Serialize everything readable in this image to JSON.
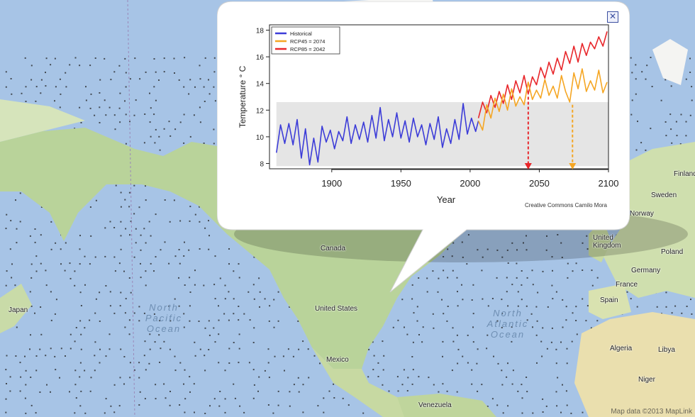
{
  "map": {
    "labels": {
      "japan": "Japan",
      "canada": "Canada",
      "united_states": "United States",
      "mexico": "Mexico",
      "venezuela": "Venezuela",
      "algeria": "Algeria",
      "libya": "Libya",
      "niger": "Niger",
      "spain": "Spain",
      "france": "France",
      "germany": "Germany",
      "poland": "Poland",
      "united_kingdom": "United Kingdom",
      "norway": "Norway",
      "finland": "Finland",
      "sweden": "Sweden"
    },
    "oceans": {
      "north_pacific": "North Pacific Ocean",
      "north_atlantic": "North Atlantic Ocean"
    },
    "copyright": "Map data ©2013 MapLink"
  },
  "popup": {
    "close_icon": "close-icon"
  },
  "chart_data": {
    "type": "line",
    "title": "",
    "xlabel": "Year",
    "ylabel": "Temperature ° C",
    "xlim": [
      1855,
      2100
    ],
    "ylim": [
      7.6,
      18.4
    ],
    "x_ticks": [
      1900,
      1950,
      2000,
      2050,
      2100
    ],
    "y_ticks": [
      8,
      10,
      12,
      14,
      16,
      18
    ],
    "band": {
      "y_min": 7.8,
      "y_max": 12.6,
      "x_min": 1860,
      "x_max": 2100
    },
    "credit": "Creative Commons Camilo Mora",
    "legend": {
      "placement": "top-left",
      "entries": [
        {
          "name": "Historical",
          "color": "#3c3cd8"
        },
        {
          "name": "RCP45 = 2074",
          "color": "#f5a623"
        },
        {
          "name": "RCP85 = 2042",
          "color": "#e8262a"
        }
      ]
    },
    "markers": [
      {
        "year": 2042,
        "color": "#e8262a",
        "from_y": 13.0
      },
      {
        "year": 2074,
        "color": "#f5a623",
        "from_y": 12.4
      }
    ],
    "series": [
      {
        "name": "Historical",
        "color": "#3c3cd8",
        "x": [
          1860,
          1863,
          1866,
          1869,
          1872,
          1875,
          1878,
          1881,
          1884,
          1887,
          1890,
          1893,
          1896,
          1899,
          1902,
          1905,
          1908,
          1911,
          1914,
          1917,
          1920,
          1923,
          1926,
          1929,
          1932,
          1935,
          1938,
          1941,
          1944,
          1947,
          1950,
          1953,
          1956,
          1959,
          1962,
          1965,
          1968,
          1971,
          1974,
          1977,
          1980,
          1983,
          1986,
          1989,
          1992,
          1995,
          1998,
          2001,
          2004,
          2006
        ],
        "y": [
          8.8,
          10.9,
          9.5,
          11.0,
          9.4,
          11.3,
          8.4,
          10.6,
          7.9,
          9.9,
          8.1,
          10.8,
          9.6,
          10.5,
          9.1,
          10.4,
          9.7,
          11.5,
          9.5,
          10.9,
          9.8,
          11.1,
          9.6,
          11.6,
          9.9,
          12.2,
          9.7,
          11.3,
          10.0,
          11.8,
          9.9,
          11.2,
          9.6,
          11.4,
          10.0,
          10.9,
          9.4,
          11.0,
          9.8,
          11.5,
          9.2,
          10.6,
          9.5,
          11.3,
          9.8,
          12.5,
          10.2,
          11.4,
          10.4,
          11.2
        ]
      },
      {
        "name": "RCP85 = 2042",
        "color": "#e8262a",
        "x": [
          2006,
          2009,
          2012,
          2015,
          2018,
          2021,
          2024,
          2027,
          2030,
          2033,
          2036,
          2039,
          2042,
          2045,
          2048,
          2051,
          2054,
          2057,
          2060,
          2063,
          2066,
          2069,
          2072,
          2075,
          2078,
          2081,
          2084,
          2087,
          2090,
          2093,
          2096,
          2099
        ],
        "y": [
          11.4,
          12.6,
          11.8,
          13.1,
          12.2,
          13.4,
          12.5,
          13.9,
          12.8,
          14.2,
          13.3,
          14.6,
          13.2,
          14.5,
          13.9,
          15.2,
          14.4,
          15.6,
          14.7,
          15.9,
          15.0,
          16.4,
          15.5,
          16.8,
          15.6,
          17.0,
          16.1,
          17.1,
          16.6,
          17.5,
          16.8,
          17.9
        ]
      },
      {
        "name": "RCP45 = 2074",
        "color": "#f5a623",
        "x": [
          2006,
          2009,
          2012,
          2015,
          2018,
          2021,
          2024,
          2027,
          2030,
          2033,
          2036,
          2039,
          2042,
          2045,
          2048,
          2051,
          2054,
          2057,
          2060,
          2063,
          2066,
          2069,
          2072,
          2075,
          2078,
          2081,
          2084,
          2087,
          2090,
          2093,
          2096,
          2099
        ],
        "y": [
          11.2,
          10.5,
          12.4,
          11.4,
          12.9,
          11.9,
          13.2,
          12.0,
          13.6,
          12.3,
          13.0,
          12.4,
          14.1,
          12.8,
          13.5,
          12.9,
          14.3,
          13.1,
          13.8,
          12.9,
          14.6,
          13.4,
          12.6,
          14.8,
          13.6,
          15.1,
          13.4,
          14.2,
          13.5,
          15.0,
          13.3,
          14.1
        ]
      }
    ]
  }
}
